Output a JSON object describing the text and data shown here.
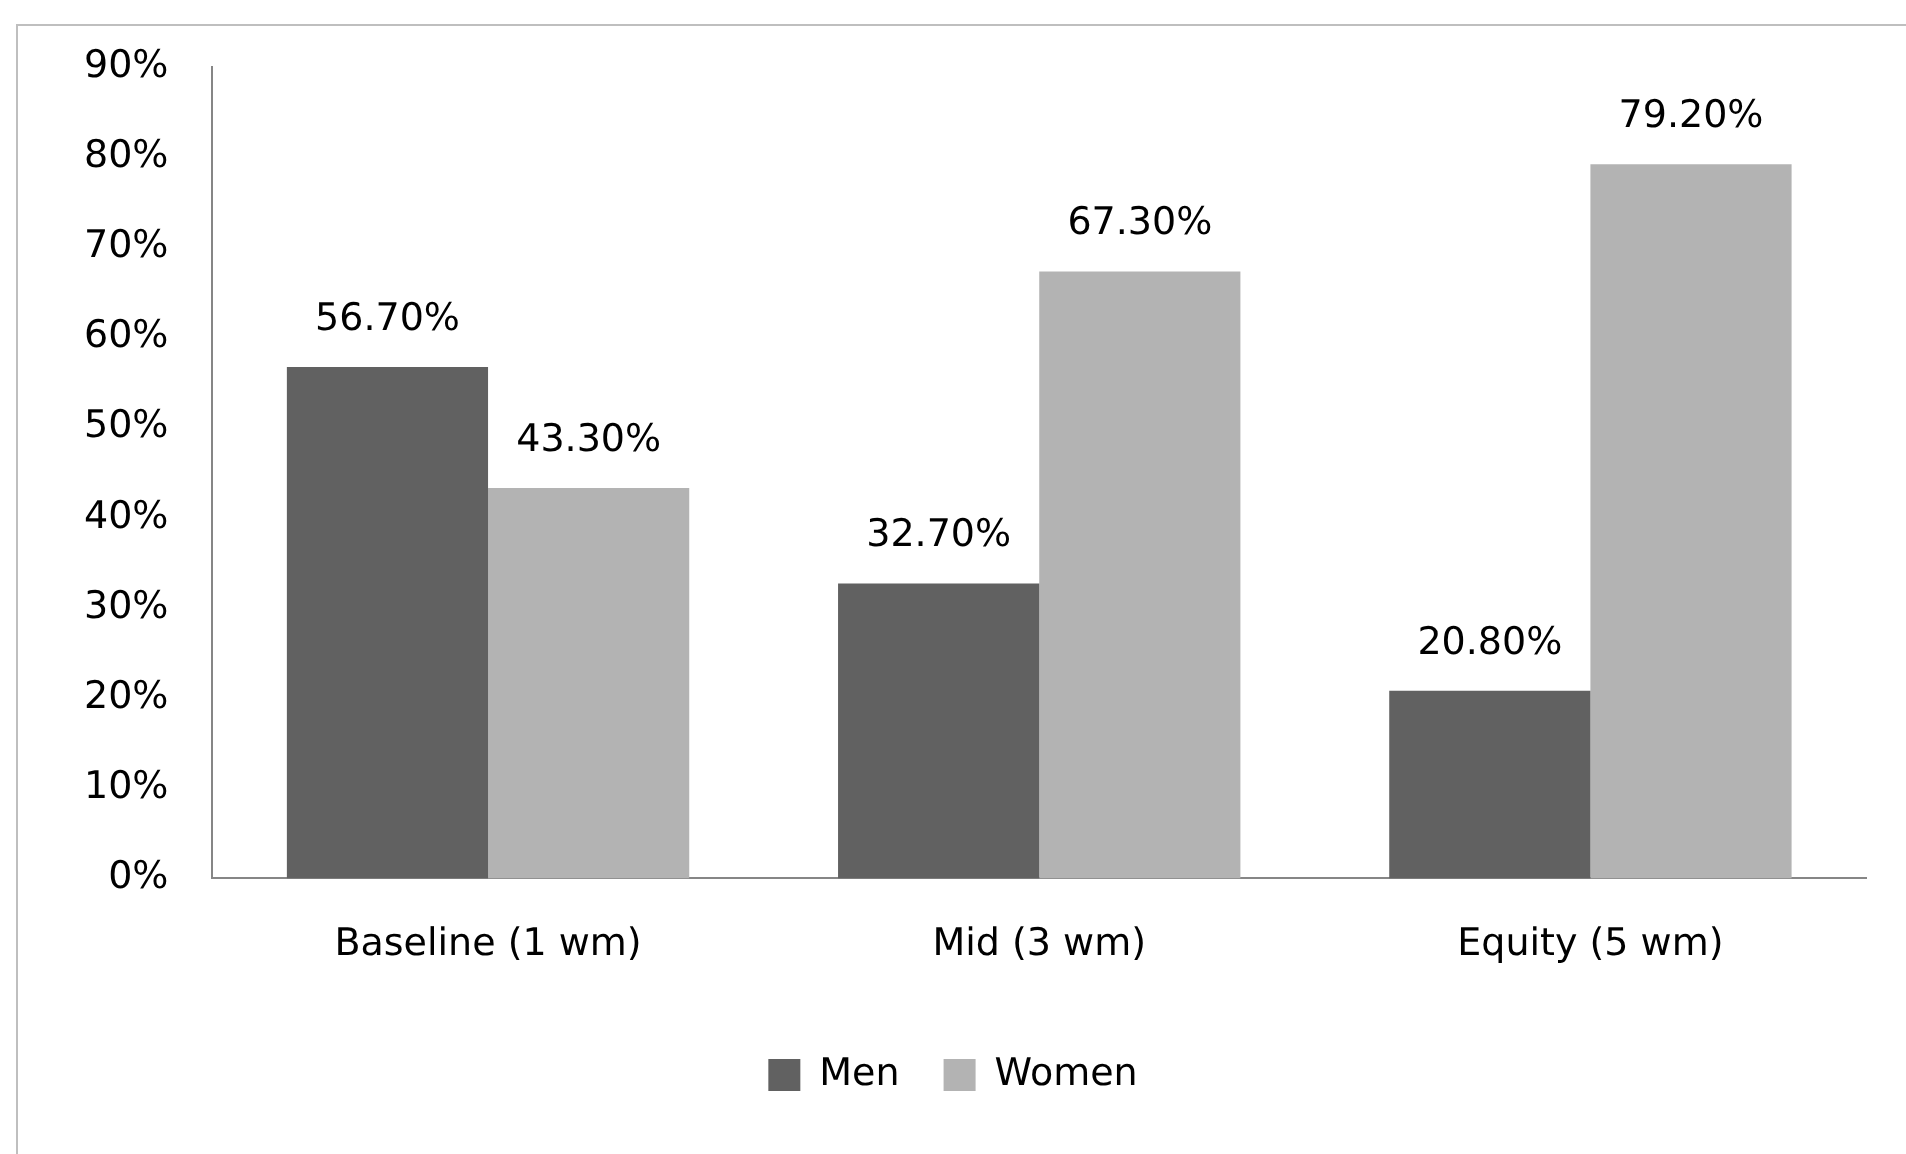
{
  "chart_data": {
    "type": "bar",
    "categories": [
      "Baseline (1 wm)",
      "Mid (3 wm)",
      "Equity (5 wm)"
    ],
    "series": [
      {
        "name": "Men",
        "color": "#616161",
        "values": [
          56.7,
          32.7,
          20.8
        ],
        "value_labels": [
          "56.70%",
          "32.70%",
          "20.80%"
        ]
      },
      {
        "name": "Women",
        "color": "#b3b3b3",
        "values": [
          43.3,
          67.3,
          79.2
        ],
        "value_labels": [
          "43.30%",
          "67.30%",
          "79.20%"
        ]
      }
    ],
    "ylim": [
      0,
      90
    ],
    "yticks": [
      {
        "value": 0,
        "label": "0%"
      },
      {
        "value": 10,
        "label": "10%"
      },
      {
        "value": 20,
        "label": "20%"
      },
      {
        "value": 30,
        "label": "30%"
      },
      {
        "value": 40,
        "label": "40%"
      },
      {
        "value": 50,
        "label": "50%"
      },
      {
        "value": 60,
        "label": "60%"
      },
      {
        "value": 70,
        "label": "70%"
      },
      {
        "value": 80,
        "label": "80%"
      },
      {
        "value": 90,
        "label": "90%"
      }
    ],
    "grid": false,
    "legend": "bottom"
  }
}
